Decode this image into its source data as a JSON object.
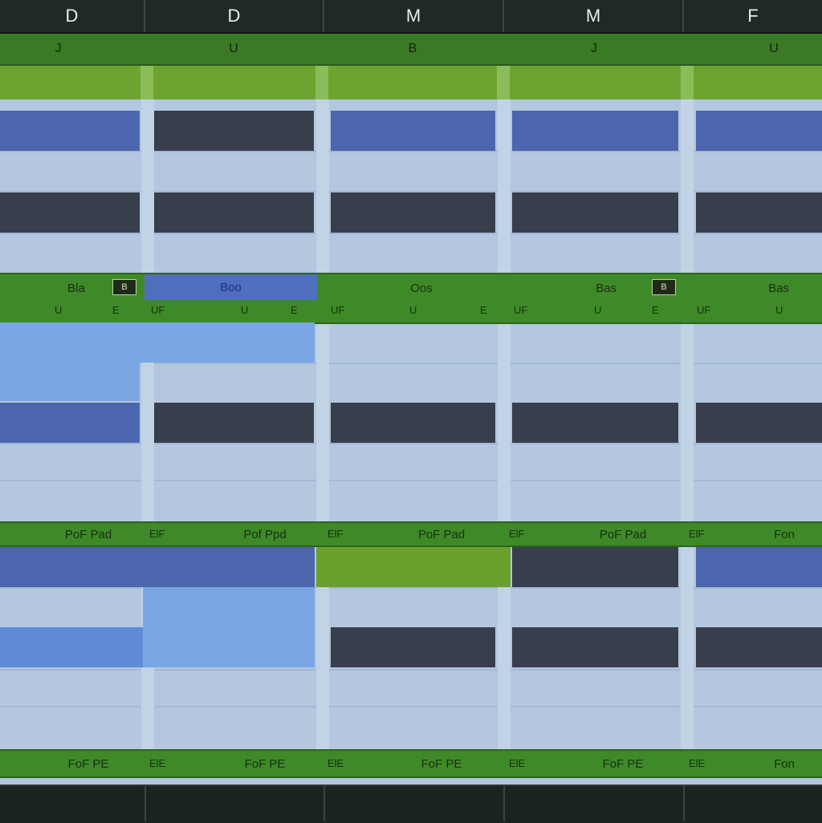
{
  "header": {
    "days": [
      "D",
      "D",
      "M",
      "M",
      "F"
    ],
    "sub_labels": [
      "J",
      "U",
      "B",
      "J",
      "U"
    ]
  },
  "summary_row_1": {
    "cells": [
      {
        "label": "Bla",
        "badge": "B",
        "low": "U",
        "low_left": "",
        "low_right": "E"
      },
      {
        "label": "Boo",
        "badge": "",
        "low": "U",
        "low_left": "UF",
        "low_right": "E"
      },
      {
        "label": "Oos",
        "badge": "",
        "low": "U",
        "low_left": "UF",
        "low_right": "E"
      },
      {
        "label": "Bas",
        "badge": "B",
        "low": "U",
        "low_left": "UF",
        "low_right": "E"
      },
      {
        "label": "Bas",
        "badge": "",
        "low": "U",
        "low_left": "UF",
        "low_right": ""
      }
    ]
  },
  "summary_row_2": {
    "cells": [
      "PoF Pad",
      "Pof Ppd",
      "PoF Pad",
      "PoF Pad",
      "Fon"
    ],
    "prefix": [
      "",
      "ElF",
      "ElF",
      "ElF",
      "ElF"
    ]
  },
  "summary_row_3": {
    "cells": [
      "FoF PE",
      "FoF PE",
      "FoF PE",
      "FoF PE",
      "Fon"
    ],
    "prefix": [
      "",
      "ElE",
      "ElE",
      "ElE",
      "ElE"
    ]
  },
  "colors": {
    "blue": "#4c66ad",
    "dark": "#383e4b",
    "light_blue": "#7aa7e3",
    "green": "#3e8a28",
    "lime": "#6da42f"
  }
}
